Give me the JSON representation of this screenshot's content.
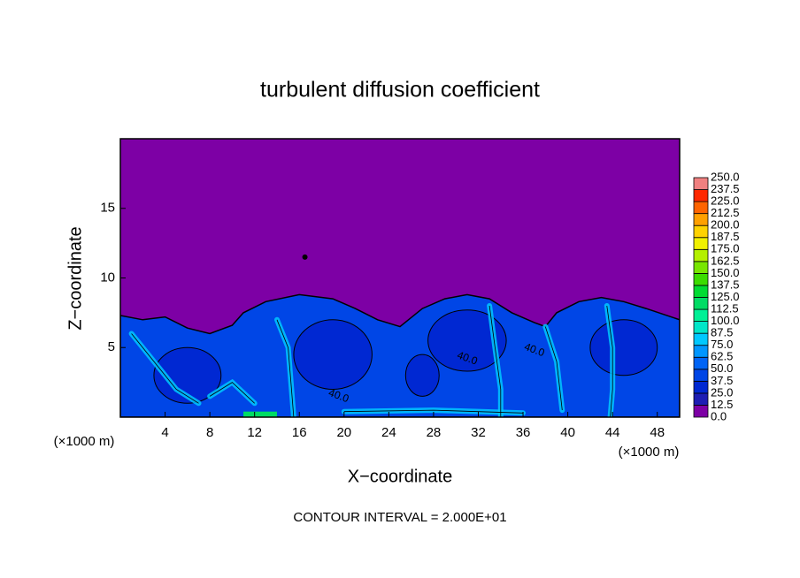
{
  "chart_data": {
    "type": "contour",
    "title": "turbulent diffusion coefficient",
    "x_label": "X−coordinate",
    "y_label": "Z−coordinate",
    "x_unit_left": "(×1000 m)",
    "x_unit_right": "(×1000 m)",
    "annotation": "CONTOUR INTERVAL = 2.000E+01",
    "contour_labels": [
      "40.0",
      "40.0",
      "40.0"
    ],
    "xlim": [
      0,
      50
    ],
    "ylim": [
      0,
      20
    ],
    "xticks": [
      4,
      8,
      12,
      16,
      20,
      24,
      28,
      32,
      36,
      40,
      44,
      48
    ],
    "yticks": [
      5,
      10,
      15
    ],
    "levels": [
      {
        "value": 0,
        "label": "0.0"
      },
      {
        "value": 12.5,
        "label": "12.5"
      },
      {
        "value": 25,
        "label": "25.0"
      },
      {
        "value": 37.5,
        "label": "37.5"
      },
      {
        "value": 50,
        "label": "50.0"
      },
      {
        "value": 62.5,
        "label": "62.5"
      },
      {
        "value": 75,
        "label": "75.0"
      },
      {
        "value": 87.5,
        "label": "87.5"
      },
      {
        "value": 100,
        "label": "100.0"
      },
      {
        "value": 112.5,
        "label": "112.5"
      },
      {
        "value": 125,
        "label": "125.0"
      },
      {
        "value": 137.5,
        "label": "137.5"
      },
      {
        "value": 150,
        "label": "150.0"
      },
      {
        "value": 162.5,
        "label": "162.5"
      },
      {
        "value": 175,
        "label": "175.0"
      },
      {
        "value": 187.5,
        "label": "187.5"
      },
      {
        "value": 200,
        "label": "200.0"
      },
      {
        "value": 212.5,
        "label": "212.5"
      },
      {
        "value": 225,
        "label": "225.0"
      },
      {
        "value": 237.5,
        "label": "237.5"
      },
      {
        "value": 250,
        "label": "250.0"
      }
    ],
    "colors": [
      "#7d00a5",
      "#1e1eb4",
      "#0028d2",
      "#0046e6",
      "#0064f5",
      "#0096ff",
      "#00c8ff",
      "#00e6c8",
      "#00f096",
      "#00dc64",
      "#00dc32",
      "#3cdc00",
      "#78e600",
      "#b4f000",
      "#f0f000",
      "#ffd200",
      "#ffa000",
      "#ff6400",
      "#ff2800",
      "#f08080"
    ]
  }
}
